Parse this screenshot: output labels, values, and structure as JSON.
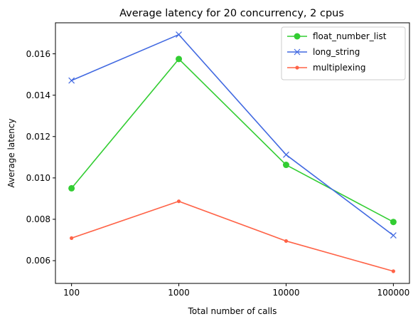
{
  "chart_data": {
    "type": "line",
    "title": "Average latency for 20 concurrency, 2 cpus",
    "xlabel": "Total number of calls",
    "ylabel": "Average latency",
    "x_scale": "log",
    "x": [
      100,
      1000,
      10000,
      100000
    ],
    "x_tick_labels": [
      "100",
      "1000",
      "10000",
      "100000"
    ],
    "ylim": [
      0.0049,
      0.0175
    ],
    "y_ticks": [
      0.006,
      0.008,
      0.01,
      0.012,
      0.014,
      0.016
    ],
    "y_tick_labels": [
      "0.006",
      "0.008",
      "0.010",
      "0.012",
      "0.014",
      "0.016"
    ],
    "grid": false,
    "legend_position": "top-right",
    "series": [
      {
        "name": "float_number_list",
        "color": "#32cd32",
        "marker": "circle",
        "values": [
          0.0095,
          0.01575,
          0.01063,
          0.00787
        ]
      },
      {
        "name": "long_string",
        "color": "#4169e1",
        "marker": "x",
        "values": [
          0.01471,
          0.01693,
          0.01112,
          0.00722
        ]
      },
      {
        "name": "multiplexing",
        "color": "#ff6347",
        "marker": "point",
        "values": [
          0.00709,
          0.00887,
          0.00695,
          0.00549
        ]
      }
    ]
  }
}
